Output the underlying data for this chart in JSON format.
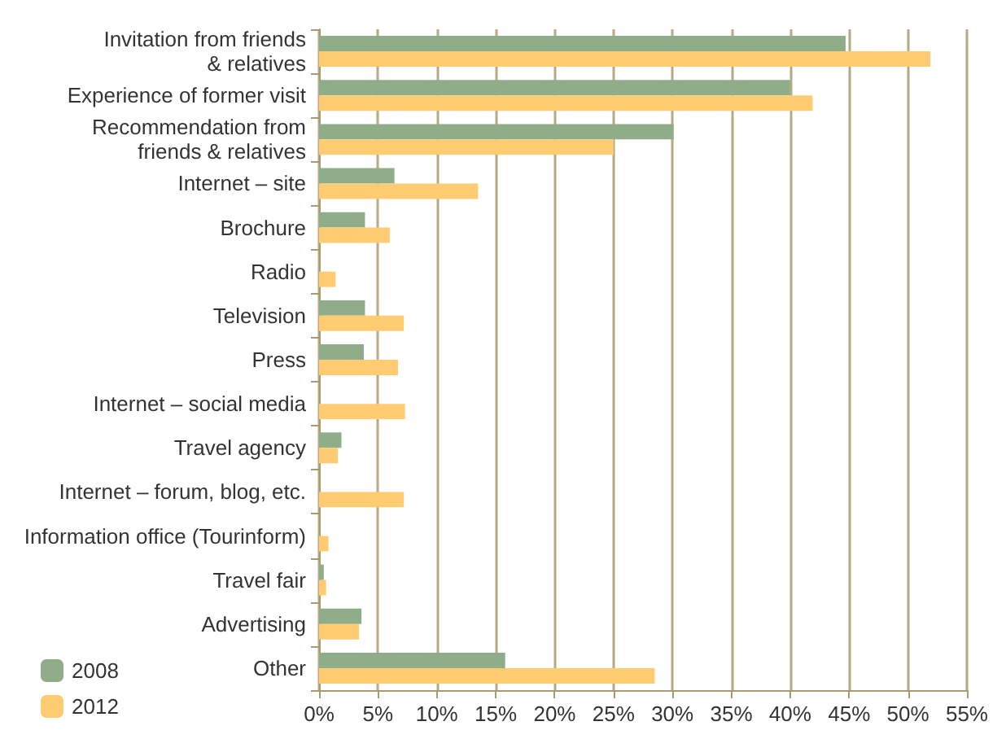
{
  "chart_data": {
    "type": "bar",
    "orientation": "horizontal",
    "categories": [
      "Invitation from friends\n& relatives",
      "Experience of former visit",
      "Recommendation from\nfriends & relatives",
      "Internet – site",
      "Brochure",
      "Radio",
      "Television",
      "Press",
      "Internet – social media",
      "Travel agency",
      "Internet – forum, blog, etc.",
      "Information office (Tourinform)",
      "Travel fair",
      "Advertising",
      "Other"
    ],
    "series": [
      {
        "name": "2008",
        "color": "#8fad88",
        "values": [
          44.7,
          40.0,
          30.1,
          6.4,
          3.9,
          null,
          3.9,
          3.8,
          null,
          1.9,
          null,
          null,
          0.4,
          3.6,
          15.8
        ]
      },
      {
        "name": "2012",
        "color": "#ffcc73",
        "values": [
          51.9,
          41.9,
          25.0,
          13.5,
          6.0,
          1.4,
          7.2,
          6.7,
          7.3,
          1.6,
          7.2,
          0.8,
          0.6,
          3.4,
          28.5
        ]
      }
    ],
    "xlim": [
      0,
      55
    ],
    "xticks": [
      {
        "value": 0,
        "label": "0%"
      },
      {
        "value": 5,
        "label": "5%"
      },
      {
        "value": 10,
        "label": "10%"
      },
      {
        "value": 15,
        "label": "15%"
      },
      {
        "value": 20,
        "label": "20%"
      },
      {
        "value": 25,
        "label": "25%"
      },
      {
        "value": 30,
        "label": "30%"
      },
      {
        "value": 35,
        "label": "35%"
      },
      {
        "value": 40,
        "label": "40%"
      },
      {
        "value": 45,
        "label": "45%"
      },
      {
        "value": 50,
        "label": "50%"
      },
      {
        "value": 55,
        "label": "55%"
      }
    ],
    "grid": "x",
    "legend": "bottom left"
  }
}
